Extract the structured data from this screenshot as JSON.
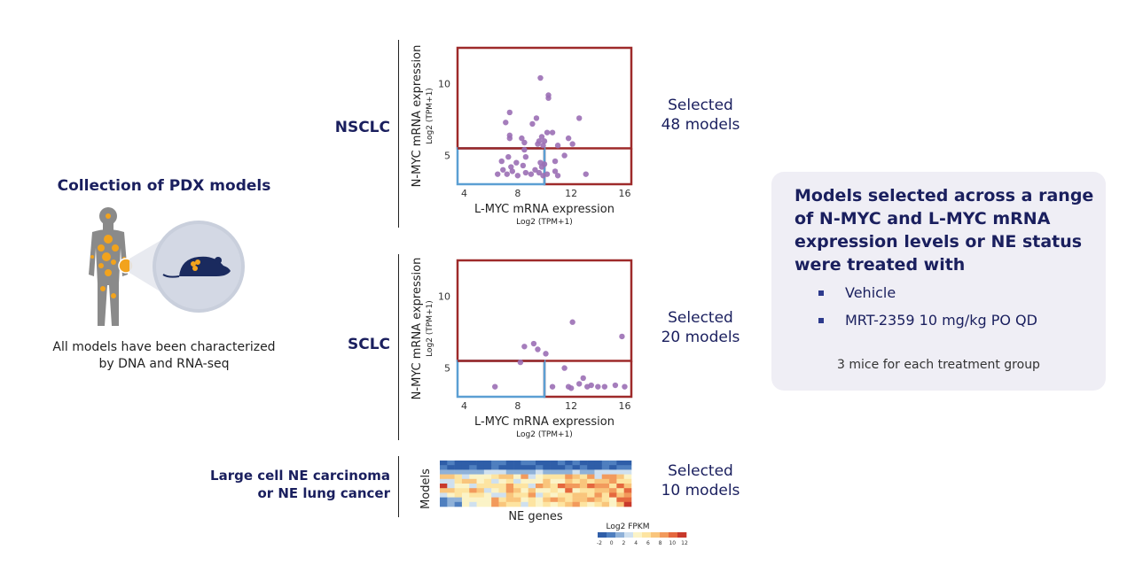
{
  "left": {
    "title": "Collection of PDX models",
    "caption_line1": "All models have been characterized",
    "caption_line2": "by DNA and RNA-seq"
  },
  "rows": {
    "nsclc_label": "NSCLC",
    "sclc_label": "SCLC",
    "ne_label_line1": "Large cell NE carcinoma",
    "ne_label_line2": "or NE lung cancer"
  },
  "selected": {
    "nsclc_line1": "Selected",
    "nsclc_line2": "48 models",
    "sclc_line1": "Selected",
    "sclc_line2": "20 models",
    "ne_line1": "Selected",
    "ne_line2": "10 models"
  },
  "panel": {
    "title": "Models selected across a range of N-MYC and L-MYC mRNA expression levels or NE status were treated with",
    "bullets": [
      "Vehicle",
      "MRT-2359 10 mg/kg PO QD"
    ],
    "note": "3 mice for each treatment group"
  },
  "colors": {
    "navy": "#1a1f5e",
    "dot": "#9b6fb5",
    "high_box": "#9e2a2a",
    "low_box": "#5b9fd3"
  },
  "chart_data": [
    {
      "type": "scatter",
      "id": "nsclc",
      "xlabel": "L-MYC mRNA expression",
      "xlabel_sub": "Log2 (TPM+1)",
      "ylabel": "N-MYC mRNA expression",
      "ylabel_sub": "Log2 (TPM+1)",
      "xlim": [
        3.5,
        16.5
      ],
      "ylim": [
        3.0,
        12.5
      ],
      "xticks": [
        4,
        8,
        12,
        16
      ],
      "yticks": [
        5,
        10
      ],
      "low_box": {
        "x": [
          3.5,
          10.0
        ],
        "y": [
          3.0,
          5.5
        ]
      },
      "high_box": {
        "x": [
          3.5,
          16.5
        ],
        "y": [
          3.0,
          12.5
        ]
      },
      "points": [
        [
          9.7,
          10.4
        ],
        [
          10.3,
          9.2
        ],
        [
          10.3,
          9.0
        ],
        [
          7.4,
          8.0
        ],
        [
          9.4,
          7.6
        ],
        [
          12.6,
          7.6
        ],
        [
          7.1,
          7.3
        ],
        [
          9.1,
          7.2
        ],
        [
          10.6,
          6.6
        ],
        [
          10.2,
          6.6
        ],
        [
          7.4,
          6.4
        ],
        [
          8.3,
          6.2
        ],
        [
          9.8,
          6.3
        ],
        [
          7.4,
          6.2
        ],
        [
          11.8,
          6.2
        ],
        [
          9.6,
          6.0
        ],
        [
          10.0,
          6.0
        ],
        [
          8.5,
          5.9
        ],
        [
          11.0,
          5.7
        ],
        [
          12.1,
          5.8
        ],
        [
          9.9,
          5.7
        ],
        [
          9.5,
          5.8
        ],
        [
          8.5,
          5.4
        ],
        [
          11.5,
          5.0
        ],
        [
          8.6,
          4.9
        ],
        [
          7.3,
          4.9
        ],
        [
          6.8,
          4.6
        ],
        [
          10.8,
          4.6
        ],
        [
          7.9,
          4.5
        ],
        [
          9.7,
          4.5
        ],
        [
          10.0,
          4.4
        ],
        [
          8.4,
          4.3
        ],
        [
          9.8,
          4.2
        ],
        [
          7.5,
          4.2
        ],
        [
          6.9,
          4.0
        ],
        [
          9.3,
          4.0
        ],
        [
          7.6,
          3.9
        ],
        [
          10.8,
          3.9
        ],
        [
          8.6,
          3.8
        ],
        [
          9.6,
          3.8
        ],
        [
          9.0,
          3.7
        ],
        [
          10.2,
          3.7
        ],
        [
          13.1,
          3.7
        ],
        [
          6.5,
          3.7
        ],
        [
          7.2,
          3.7
        ],
        [
          8.0,
          3.6
        ],
        [
          9.9,
          3.6
        ],
        [
          11.0,
          3.6
        ]
      ]
    },
    {
      "type": "scatter",
      "id": "sclc",
      "xlabel": "L-MYC mRNA expression",
      "xlabel_sub": "Log2 (TPM+1)",
      "ylabel": "N-MYC mRNA expression",
      "ylabel_sub": "Log2 (TPM+1)",
      "xlim": [
        3.5,
        16.5
      ],
      "ylim": [
        3.0,
        12.5
      ],
      "xticks": [
        4,
        8,
        12,
        16
      ],
      "yticks": [
        5,
        10
      ],
      "low_box": {
        "x": [
          3.5,
          10.0
        ],
        "y": [
          3.0,
          5.5
        ]
      },
      "high_box": {
        "x": [
          3.5,
          16.5
        ],
        "y": [
          3.0,
          12.5
        ]
      },
      "points": [
        [
          12.1,
          8.2
        ],
        [
          15.8,
          7.2
        ],
        [
          9.2,
          6.7
        ],
        [
          8.5,
          6.5
        ],
        [
          9.5,
          6.3
        ],
        [
          10.1,
          6.0
        ],
        [
          8.2,
          5.4
        ],
        [
          11.5,
          5.0
        ],
        [
          12.9,
          4.3
        ],
        [
          12.6,
          3.9
        ],
        [
          6.3,
          3.7
        ],
        [
          10.6,
          3.7
        ],
        [
          11.8,
          3.7
        ],
        [
          13.2,
          3.7
        ],
        [
          13.5,
          3.8
        ],
        [
          14.5,
          3.7
        ],
        [
          15.3,
          3.8
        ],
        [
          16.0,
          3.7
        ],
        [
          14.0,
          3.7
        ],
        [
          12.0,
          3.6
        ]
      ]
    },
    {
      "type": "heatmap",
      "id": "ne",
      "xlabel": "NE genes",
      "ylabel": "Models",
      "colorbar_title": "Log2 FPKM",
      "colorbar_ticks": [
        "-2",
        "0",
        "2",
        "4",
        "6",
        "8",
        "10",
        "12"
      ],
      "rows": 10,
      "cols": 26
    }
  ]
}
